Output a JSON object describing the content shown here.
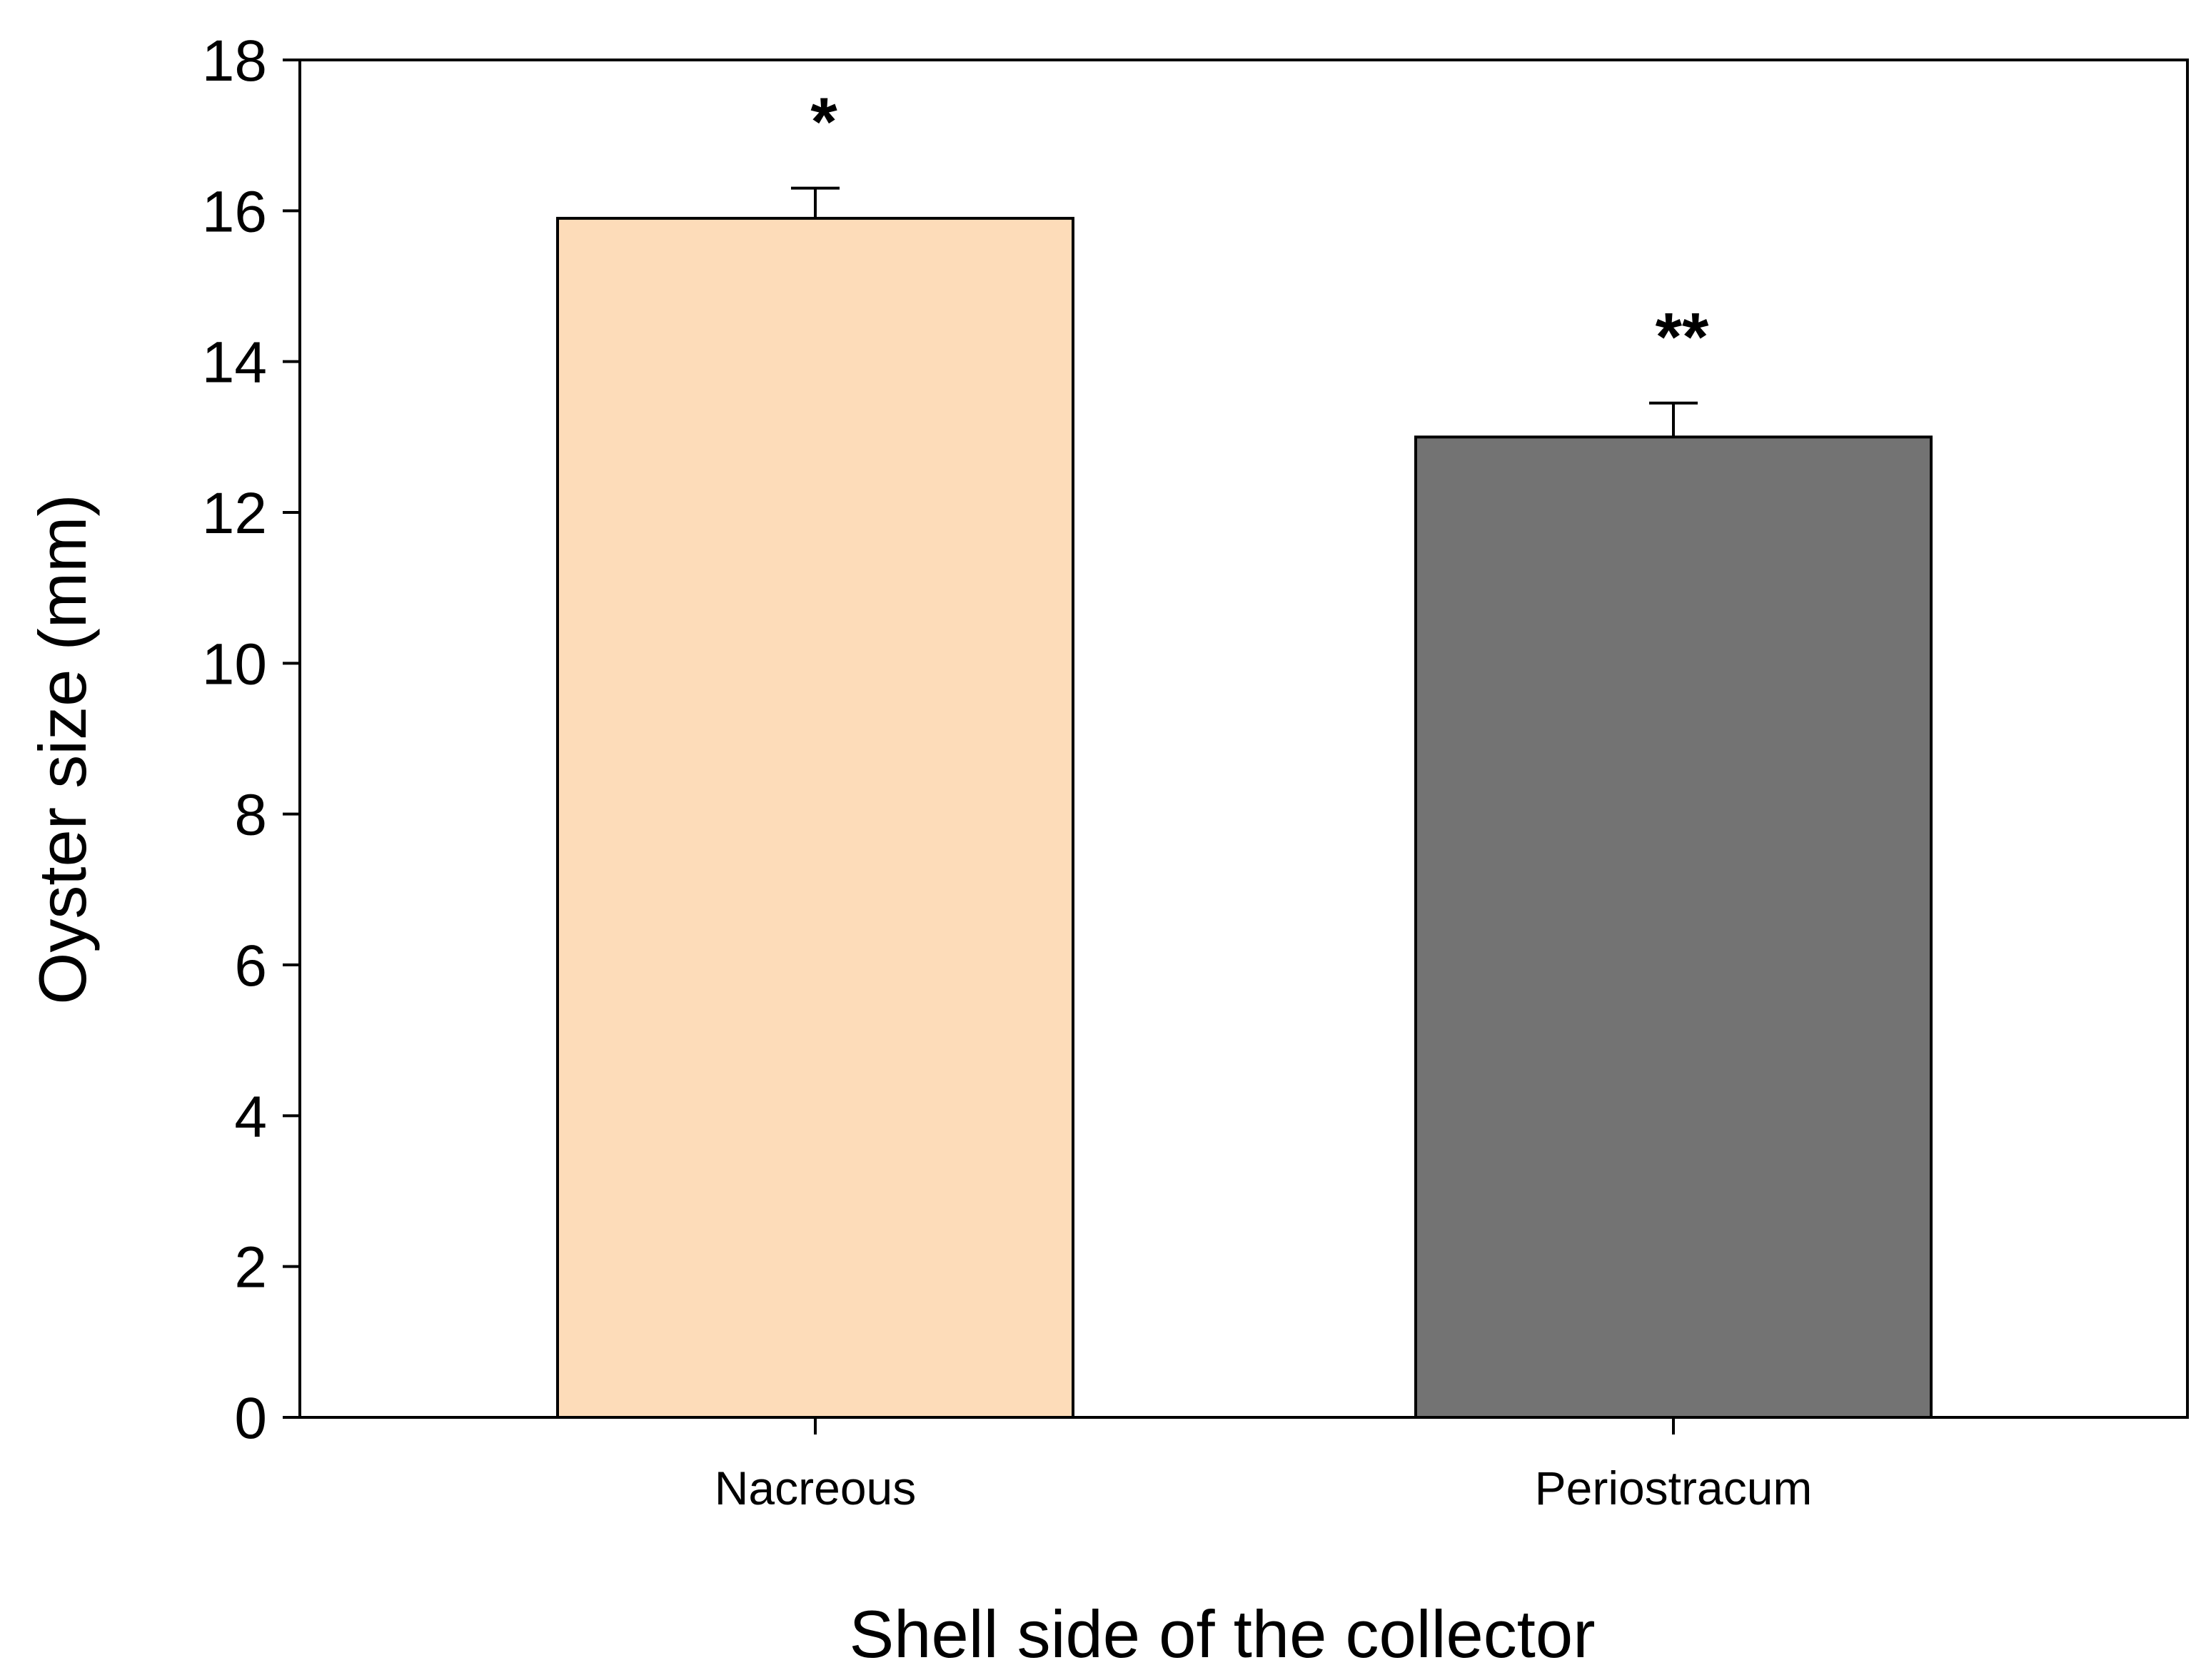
{
  "chart_data": {
    "type": "bar",
    "categories": [
      "Nacreous",
      "Periostracum"
    ],
    "values": [
      15.9,
      13.0
    ],
    "errors": [
      0.4,
      0.45
    ],
    "annotations": [
      "*",
      "**"
    ],
    "colors": [
      "#fddcb9",
      "#737373"
    ],
    "xlabel": "Shell side of the collector",
    "ylabel": "Oyster size (mm)",
    "ylim": [
      0,
      18
    ],
    "yticks": [
      0,
      2,
      4,
      6,
      8,
      10,
      12,
      14,
      16,
      18
    ],
    "grid": false,
    "legend": "none"
  }
}
